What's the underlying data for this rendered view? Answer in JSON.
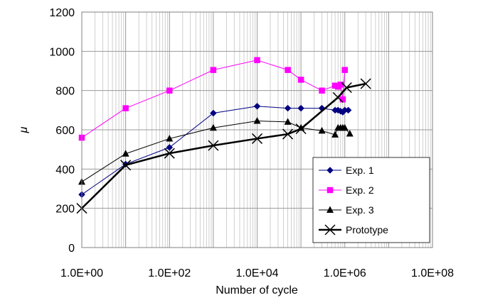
{
  "chart_data": {
    "type": "line",
    "title": "",
    "xlabel": "Number of cycle",
    "ylabel": "μ",
    "x_scale": "log",
    "xlim": [
      1,
      100000000
    ],
    "ylim": [
      0,
      1200
    ],
    "x_ticks": [
      1,
      100,
      10000,
      1000000,
      100000000
    ],
    "x_tick_labels": [
      "1.0E+00",
      "1.0E+02",
      "1.0E+04",
      "1.0E+06",
      "1.0E+08"
    ],
    "y_ticks": [
      0,
      200,
      400,
      600,
      800,
      1000,
      1200
    ],
    "y_tick_labels": [
      "0",
      "200",
      "400",
      "600",
      "800",
      "1000",
      "1200"
    ],
    "grid": {
      "x_major": true,
      "x_minor": true,
      "y_major": true
    },
    "legend_position": "bottom-right",
    "series": [
      {
        "name": "Exp. 1",
        "color": "#000080",
        "marker": "diamond",
        "line_width": 1,
        "x": [
          1,
          10,
          100,
          1000,
          10000,
          50000,
          100000,
          300000,
          600000,
          700000,
          800000,
          900000,
          1000000,
          1200000
        ],
        "y": [
          270,
          425,
          510,
          685,
          720,
          710,
          710,
          710,
          700,
          700,
          695,
          690,
          700,
          700
        ]
      },
      {
        "name": "Exp. 2",
        "color": "#ff00ff",
        "marker": "square",
        "line_width": 1,
        "x": [
          1,
          10,
          100,
          1000,
          10000,
          50000,
          100000,
          300000,
          600000,
          700000,
          800000,
          900000,
          1000000
        ],
        "y": [
          560,
          710,
          800,
          905,
          955,
          905,
          855,
          800,
          825,
          820,
          830,
          755,
          905
        ]
      },
      {
        "name": "Exp. 3",
        "color": "#000000",
        "marker": "triangle",
        "line_width": 1,
        "x": [
          1,
          10,
          100,
          1000,
          10000,
          50000,
          100000,
          300000,
          600000,
          700000,
          800000,
          900000,
          1000000,
          1300000
        ],
        "y": [
          335,
          478,
          555,
          610,
          645,
          640,
          610,
          595,
          575,
          610,
          610,
          610,
          610,
          580
        ]
      },
      {
        "name": "Prototype",
        "color": "#000000",
        "marker": "x",
        "line_width": 2.5,
        "x": [
          1,
          10,
          100,
          1000,
          10000,
          50000,
          100000,
          700000,
          1100000,
          3000000
        ],
        "y": [
          200,
          420,
          480,
          520,
          555,
          578,
          605,
          765,
          815,
          835
        ]
      }
    ]
  }
}
